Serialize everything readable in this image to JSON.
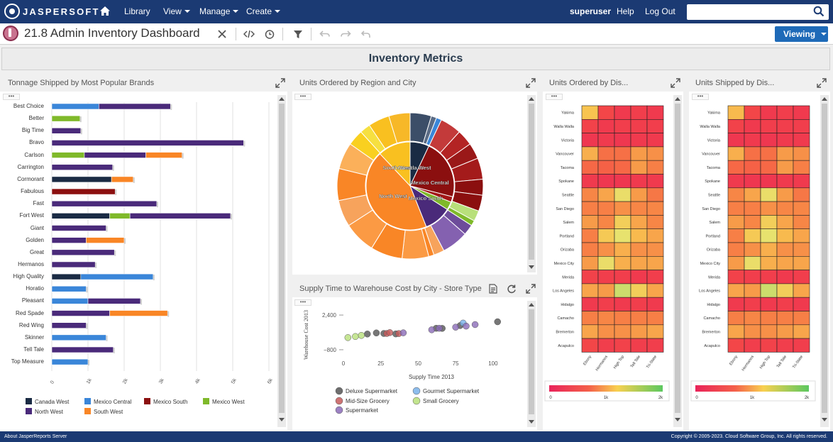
{
  "topnav": {
    "brand": "JASPERSOFT",
    "items": [
      {
        "label": "Library",
        "caret": false
      },
      {
        "label": "View",
        "caret": true
      },
      {
        "label": "Manage",
        "caret": true
      },
      {
        "label": "Create",
        "caret": true
      }
    ],
    "user": "superuser",
    "help": "Help",
    "logout": "Log Out",
    "search_value": ""
  },
  "toolbar": {
    "title": "21.8 Admin Inventory Dashboard",
    "viewing_label": "Viewing"
  },
  "dashboard": {
    "banner": "Inventory Metrics",
    "dots": "•••",
    "panels": {
      "brands": "Tonnage Shipped by Most Popular Brands",
      "region": "Units Ordered by Region and City",
      "supply": "Supply Time to Warehouse Cost by City - Store Type",
      "ordered_dis": "Units Ordered by Dis...",
      "shipped_dis": "Units Shipped by Dis..."
    }
  },
  "footer": {
    "left": "About JasperReports Server",
    "right": "Copyright © 2005-2023. Cloud Software Group, Inc. All rights reserved."
  },
  "colors": {
    "canada_west": "#1a2b44",
    "mexico_central": "#3a86d9",
    "mexico_south": "#8b0f0f",
    "mexico_west": "#7fb92a",
    "north_west": "#4a2a7a",
    "south_west": "#f98626"
  },
  "chart_data": [
    {
      "type": "bar",
      "orientation": "horizontal",
      "stacked": true,
      "categories": [
        "Best Choice",
        "Better",
        "Big Time",
        "Bravo",
        "Carlson",
        "Carrington",
        "Cormorant",
        "Fabulous",
        "Fast",
        "Fort West",
        "Giant",
        "Golden",
        "Great",
        "Hermanos",
        "High Quality",
        "Horatio",
        "Pleasant",
        "Red Spade",
        "Red Wing",
        "Skinner",
        "Tell Tale",
        "Top Measure"
      ],
      "x_ticks": [
        "0",
        "1k",
        "2k",
        "3k",
        "4k",
        "5k",
        "6k"
      ],
      "xlim": [
        0,
        6000
      ],
      "legend_placement": "bottom",
      "series": [
        {
          "name": "Canada West",
          "values": [
            0,
            0,
            0,
            0,
            0,
            0,
            1650,
            0,
            0,
            1600,
            0,
            0,
            0,
            0,
            800,
            0,
            0,
            0,
            0,
            0,
            0,
            0
          ]
        },
        {
          "name": "Mexico Central",
          "values": [
            1300,
            0,
            0,
            0,
            0,
            0,
            0,
            0,
            0,
            0,
            0,
            0,
            0,
            0,
            2000,
            950,
            1000,
            0,
            0,
            1500,
            0,
            1000
          ]
        },
        {
          "name": "Mexico South",
          "values": [
            0,
            0,
            0,
            0,
            0,
            0,
            0,
            1750,
            0,
            0,
            0,
            0,
            0,
            0,
            0,
            0,
            0,
            0,
            0,
            0,
            0,
            0
          ]
        },
        {
          "name": "Mexico West",
          "values": [
            0,
            780,
            0,
            0,
            900,
            0,
            0,
            0,
            0,
            560,
            0,
            0,
            0,
            0,
            0,
            0,
            0,
            0,
            0,
            0,
            0,
            0
          ]
        },
        {
          "name": "North West",
          "values": [
            1980,
            0,
            800,
            5300,
            1700,
            1680,
            0,
            0,
            2900,
            2780,
            1500,
            950,
            1730,
            1200,
            0,
            0,
            1450,
            1600,
            950,
            0,
            1700,
            0
          ]
        },
        {
          "name": "South West",
          "values": [
            0,
            0,
            0,
            0,
            1000,
            0,
            600,
            0,
            0,
            0,
            0,
            1050,
            0,
            0,
            0,
            0,
            0,
            1600,
            0,
            0,
            0,
            0
          ]
        }
      ]
    },
    {
      "type": "pie",
      "variant": "sunburst",
      "inner": [
        {
          "label": "Canada West",
          "value": 7
        },
        {
          "label": "Mexico Central",
          "value": 22
        },
        {
          "label": "Mexico South",
          "value": 2
        },
        {
          "label": "Mexico West",
          "value": 3
        },
        {
          "label": "North West",
          "value": 10
        },
        {
          "label": "South West",
          "value": 44
        },
        {
          "label": "South West",
          "value": 12
        }
      ],
      "outer_weights": [
        4,
        1,
        1,
        4,
        3,
        3,
        4,
        3,
        3,
        2,
        1,
        2,
        5,
        2,
        1,
        5,
        6,
        6,
        5,
        6,
        5,
        3,
        2,
        4,
        4
      ]
    },
    {
      "type": "scatter",
      "xlabel": "Supply Time 2013",
      "ylabel": "Warehouse Cost 2013",
      "x_ticks": [
        "0",
        "25",
        "50",
        "75",
        "100"
      ],
      "y_ticks": [
        "2,400",
        "−800"
      ],
      "xlim": [
        0,
        110
      ],
      "ylim": [
        -1000,
        2600
      ],
      "series": [
        {
          "name": "Deluxe Supermarket",
          "color": "#555555",
          "points": [
            [
              16,
              650
            ],
            [
              22,
              750
            ],
            [
              27,
              700
            ],
            [
              35,
              660
            ],
            [
              62,
              1180
            ],
            [
              66,
              1170
            ],
            [
              78,
              1430
            ],
            [
              103,
              1780
            ]
          ]
        },
        {
          "name": "Gourmet Supermarket",
          "color": "#79b1ea",
          "points": [
            [
              80,
              1660
            ]
          ]
        },
        {
          "name": "Mid-Size Grocery",
          "color": "#c55a5a",
          "points": [
            [
              29,
              700
            ],
            [
              31,
              780
            ],
            [
              37,
              690
            ]
          ]
        },
        {
          "name": "Small Grocery",
          "color": "#b8e07a",
          "points": [
            [
              3,
              320
            ],
            [
              8,
              420
            ],
            [
              12,
              520
            ]
          ]
        },
        {
          "name": "Supermarket",
          "color": "#8b6bb8",
          "points": [
            [
              40,
              760
            ],
            [
              59,
              1040
            ],
            [
              64,
              1180
            ],
            [
              75,
              1280
            ],
            [
              82,
              1380
            ],
            [
              88,
              1520
            ]
          ]
        }
      ]
    },
    {
      "type": "heatmap",
      "rows": [
        "Yakima",
        "Walla Walla",
        "Victoria",
        "Vancouver",
        "Tacoma",
        "Spokane",
        "Seattle",
        "San Diego",
        "Salem",
        "Portland",
        "Orizaba",
        "Mexico City",
        "Merida",
        "Los Angeles",
        "Hidalgo",
        "Camacho",
        "Bremerton",
        "Acapulco"
      ],
      "columns": [
        "Ebony",
        "Hermanos",
        "High Top",
        "Tell Tale",
        "Tri-State"
      ],
      "scale": {
        "min": 0,
        "max": 2000,
        "ticks": [
          "0",
          "1k",
          "2k"
        ]
      },
      "values": [
        [
          1200,
          450,
          300,
          350,
          300
        ],
        [
          400,
          300,
          350,
          350,
          350
        ],
        [
          250,
          300,
          250,
          300,
          300
        ],
        [
          1100,
          750,
          750,
          1000,
          950
        ],
        [
          700,
          650,
          700,
          1000,
          850
        ],
        [
          300,
          250,
          250,
          300,
          300
        ],
        [
          900,
          1050,
          1450,
          1000,
          800
        ],
        [
          850,
          850,
          950,
          900,
          900
        ],
        [
          1000,
          900,
          1300,
          1050,
          900
        ],
        [
          850,
          1250,
          1500,
          1150,
          1050
        ],
        [
          850,
          950,
          1100,
          950,
          950
        ],
        [
          1000,
          1450,
          1100,
          1050,
          1050
        ],
        [
          400,
          350,
          350,
          300,
          350
        ],
        [
          1050,
          1000,
          1600,
          1300,
          1050
        ],
        [
          300,
          350,
          300,
          350,
          300
        ],
        [
          850,
          900,
          850,
          850,
          850
        ],
        [
          1050,
          950,
          950,
          1000,
          1050
        ],
        [
          450,
          350,
          400,
          350,
          350
        ]
      ]
    },
    {
      "type": "heatmap",
      "rows": [
        "Yakima",
        "Walla Walla",
        "Victoria",
        "Vancouver",
        "Tacoma",
        "Spokane",
        "Seattle",
        "San Diego",
        "Salem",
        "Portland",
        "Orizaba",
        "Mexico City",
        "Merida",
        "Los Angeles",
        "Hidalgo",
        "Camacho",
        "Bremerton",
        "Acapulco"
      ],
      "columns": [
        "Ebony",
        "Hermanos",
        "High Top",
        "Tell Tale",
        "Tri-State"
      ],
      "scale": {
        "min": 0,
        "max": 2000,
        "ticks": [
          "0",
          "1k",
          "2k"
        ]
      },
      "values": [
        [
          1150,
          450,
          300,
          350,
          300
        ],
        [
          400,
          300,
          350,
          350,
          350
        ],
        [
          250,
          300,
          250,
          300,
          300
        ],
        [
          1100,
          750,
          750,
          1000,
          950
        ],
        [
          700,
          650,
          700,
          1000,
          850
        ],
        [
          300,
          250,
          250,
          300,
          300
        ],
        [
          900,
          1050,
          1450,
          1000,
          800
        ],
        [
          850,
          850,
          950,
          900,
          900
        ],
        [
          1000,
          900,
          1300,
          1050,
          900
        ],
        [
          850,
          1250,
          1500,
          1150,
          1050
        ],
        [
          850,
          950,
          1100,
          950,
          950
        ],
        [
          1000,
          1450,
          1100,
          1050,
          1050
        ],
        [
          400,
          350,
          350,
          300,
          350
        ],
        [
          1050,
          1000,
          1600,
          1300,
          1050
        ],
        [
          300,
          350,
          300,
          350,
          300
        ],
        [
          850,
          900,
          850,
          850,
          850
        ],
        [
          1050,
          950,
          950,
          1000,
          1050
        ],
        [
          450,
          350,
          400,
          350,
          350
        ]
      ]
    }
  ]
}
